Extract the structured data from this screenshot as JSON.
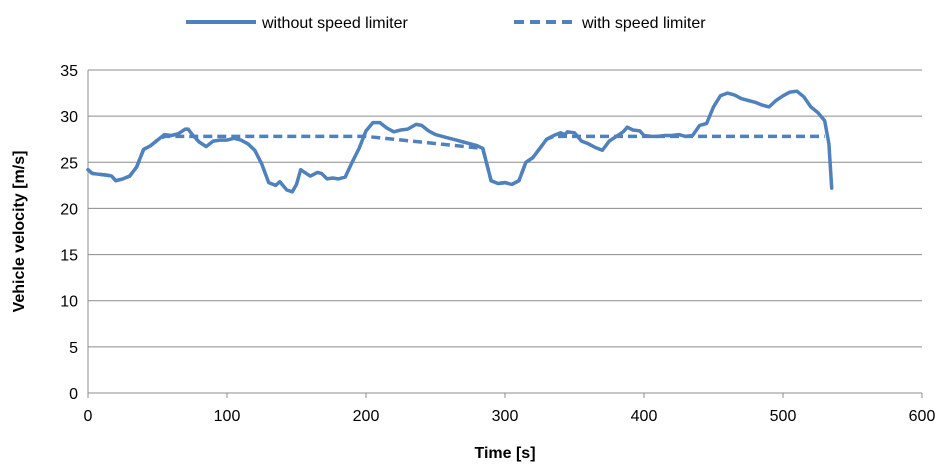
{
  "chart_data": {
    "type": "line",
    "xlabel": "Time [s]",
    "ylabel": "Vehicle velocity [m/s]",
    "xlim": [
      0,
      600
    ],
    "ylim": [
      0,
      35
    ],
    "x_ticks": [
      0,
      100,
      200,
      300,
      400,
      500,
      600
    ],
    "y_ticks": [
      0,
      5,
      10,
      15,
      20,
      25,
      30,
      35
    ],
    "grid": "horizontal",
    "legend_position": "top",
    "color": "#4f81bd",
    "series": [
      {
        "name": "without speed limiter",
        "style": "solid",
        "points": [
          [
            0,
            24.2
          ],
          [
            3,
            23.8
          ],
          [
            8,
            23.7
          ],
          [
            14,
            23.6
          ],
          [
            17,
            23.5
          ],
          [
            20,
            23.0
          ],
          [
            25,
            23.2
          ],
          [
            30,
            23.5
          ],
          [
            35,
            24.5
          ],
          [
            40,
            26.4
          ],
          [
            45,
            26.8
          ],
          [
            50,
            27.4
          ],
          [
            55,
            28.0
          ],
          [
            60,
            27.9
          ],
          [
            65,
            28.1
          ],
          [
            70,
            28.6
          ],
          [
            72,
            28.6
          ],
          [
            75,
            28.0
          ],
          [
            80,
            27.2
          ],
          [
            85,
            26.7
          ],
          [
            90,
            27.3
          ],
          [
            95,
            27.4
          ],
          [
            100,
            27.4
          ],
          [
            105,
            27.6
          ],
          [
            110,
            27.4
          ],
          [
            115,
            27.0
          ],
          [
            120,
            26.3
          ],
          [
            125,
            24.8
          ],
          [
            130,
            22.8
          ],
          [
            135,
            22.5
          ],
          [
            138,
            22.9
          ],
          [
            143,
            22.0
          ],
          [
            147,
            21.8
          ],
          [
            150,
            22.6
          ],
          [
            153,
            24.2
          ],
          [
            157,
            23.8
          ],
          [
            160,
            23.5
          ],
          [
            165,
            23.9
          ],
          [
            168,
            23.8
          ],
          [
            172,
            23.2
          ],
          [
            176,
            23.3
          ],
          [
            180,
            23.2
          ],
          [
            185,
            23.4
          ],
          [
            190,
            25.0
          ],
          [
            195,
            26.5
          ],
          [
            200,
            28.4
          ],
          [
            205,
            29.3
          ],
          [
            210,
            29.3
          ],
          [
            215,
            28.7
          ],
          [
            220,
            28.3
          ],
          [
            225,
            28.5
          ],
          [
            230,
            28.6
          ],
          [
            236,
            29.1
          ],
          [
            240,
            29.0
          ],
          [
            245,
            28.4
          ],
          [
            250,
            28.0
          ],
          [
            255,
            27.8
          ],
          [
            260,
            27.6
          ],
          [
            265,
            27.4
          ],
          [
            270,
            27.2
          ],
          [
            275,
            27.0
          ],
          [
            280,
            26.8
          ],
          [
            284,
            26.5
          ],
          [
            290,
            23.0
          ],
          [
            295,
            22.7
          ],
          [
            300,
            22.8
          ],
          [
            305,
            22.6
          ],
          [
            310,
            23.0
          ],
          [
            315,
            25.0
          ],
          [
            320,
            25.5
          ],
          [
            325,
            26.5
          ],
          [
            330,
            27.5
          ],
          [
            335,
            27.9
          ],
          [
            340,
            28.2
          ],
          [
            343,
            28.0
          ],
          [
            345,
            28.3
          ],
          [
            350,
            28.2
          ],
          [
            355,
            27.3
          ],
          [
            360,
            27.0
          ],
          [
            365,
            26.6
          ],
          [
            370,
            26.3
          ],
          [
            375,
            27.3
          ],
          [
            380,
            27.8
          ],
          [
            385,
            28.3
          ],
          [
            388,
            28.8
          ],
          [
            392,
            28.5
          ],
          [
            397,
            28.4
          ],
          [
            400,
            27.9
          ],
          [
            405,
            27.8
          ],
          [
            410,
            27.8
          ],
          [
            415,
            27.9
          ],
          [
            420,
            27.9
          ],
          [
            425,
            28.0
          ],
          [
            430,
            27.8
          ],
          [
            435,
            27.9
          ],
          [
            440,
            29.0
          ],
          [
            445,
            29.2
          ],
          [
            450,
            31.0
          ],
          [
            455,
            32.2
          ],
          [
            460,
            32.5
          ],
          [
            465,
            32.3
          ],
          [
            470,
            31.9
          ],
          [
            475,
            31.7
          ],
          [
            480,
            31.5
          ],
          [
            485,
            31.2
          ],
          [
            490,
            31.0
          ],
          [
            495,
            31.7
          ],
          [
            500,
            32.2
          ],
          [
            505,
            32.6
          ],
          [
            510,
            32.7
          ],
          [
            515,
            32.1
          ],
          [
            520,
            31.0
          ],
          [
            525,
            30.4
          ],
          [
            530,
            29.5
          ],
          [
            533,
            27.0
          ],
          [
            535,
            22.2
          ]
        ]
      },
      {
        "name": "with speed limiter",
        "style": "dashed",
        "points": [
          [
            0,
            24.2
          ],
          [
            3,
            23.8
          ],
          [
            8,
            23.7
          ],
          [
            14,
            23.6
          ],
          [
            17,
            23.5
          ],
          [
            20,
            23.0
          ],
          [
            25,
            23.2
          ],
          [
            30,
            23.5
          ],
          [
            35,
            24.5
          ],
          [
            40,
            26.4
          ],
          [
            45,
            26.8
          ],
          [
            50,
            27.4
          ],
          [
            55,
            27.8
          ],
          [
            200,
            27.8
          ],
          [
            284,
            26.5
          ],
          [
            290,
            23.0
          ],
          [
            295,
            22.7
          ],
          [
            300,
            22.8
          ],
          [
            305,
            22.6
          ],
          [
            310,
            23.0
          ],
          [
            315,
            25.0
          ],
          [
            320,
            25.5
          ],
          [
            325,
            26.5
          ],
          [
            330,
            27.5
          ],
          [
            335,
            27.8
          ],
          [
            530,
            27.8
          ]
        ]
      }
    ]
  }
}
